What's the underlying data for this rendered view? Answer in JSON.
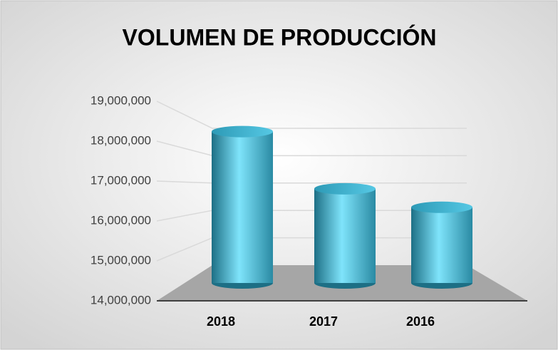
{
  "chart_data": {
    "type": "bar",
    "title": "VOLUMEN DE PRODUCCIÓN",
    "categories": [
      "2018",
      "2017",
      "2016"
    ],
    "values": [
      18500000,
      16800000,
      16250000
    ],
    "color": "#3fb8d6",
    "ylim": [
      14000000,
      19000000
    ],
    "yticks": [
      {
        "value": 14000000,
        "label": "14,000,000"
      },
      {
        "value": 15000000,
        "label": "15,000,000"
      },
      {
        "value": 16000000,
        "label": "16,000,000"
      },
      {
        "value": 17000000,
        "label": "17,000,000"
      },
      {
        "value": 18000000,
        "label": "18,000,000"
      },
      {
        "value": 19000000,
        "label": "19,000,000"
      }
    ],
    "grid": true
  }
}
